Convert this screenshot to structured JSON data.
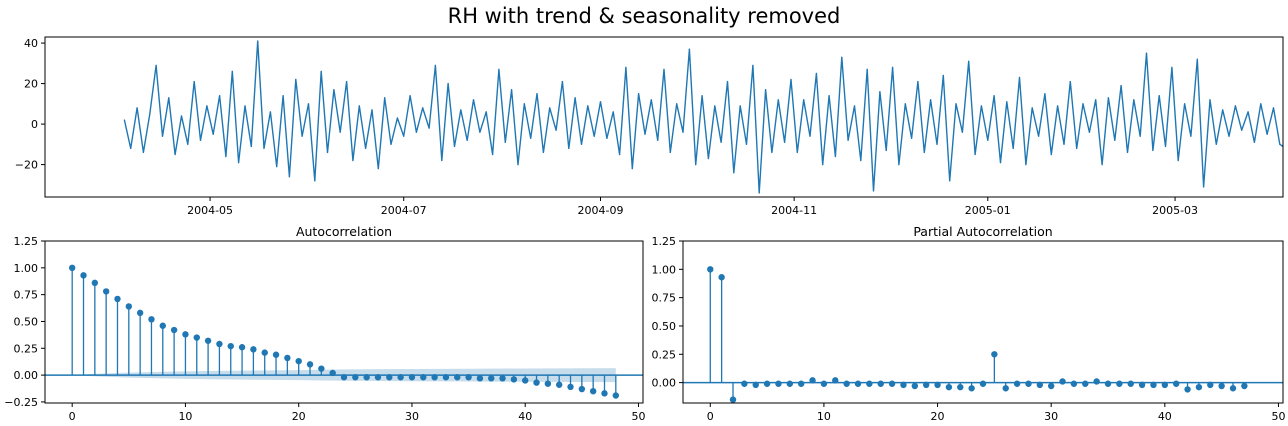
{
  "figure": {
    "title": "RH with trend & seasonality removed"
  },
  "chart_data": [
    {
      "type": "line",
      "title": "",
      "xlabel": "",
      "ylabel": "",
      "x_range": [
        "2004-03-10",
        "2005-04-04"
      ],
      "ylim": [
        -36,
        43
      ],
      "x_ticks": [
        "2004-05",
        "2004-07",
        "2004-09",
        "2004-11",
        "2005-01",
        "2005-03"
      ],
      "y_ticks": [
        -20,
        0,
        20,
        40
      ],
      "series": [
        {
          "color": "#1f77b4",
          "points": [
            [
              "2004-04-04",
              2
            ],
            [
              "2004-04-06",
              -12
            ],
            [
              "2004-04-08",
              8
            ],
            [
              "2004-04-10",
              -14
            ],
            [
              "2004-04-12",
              5
            ],
            [
              "2004-04-14",
              29
            ],
            [
              "2004-04-16",
              -6
            ],
            [
              "2004-04-18",
              13
            ],
            [
              "2004-04-20",
              -15
            ],
            [
              "2004-04-22",
              4
            ],
            [
              "2004-04-24",
              -10
            ],
            [
              "2004-04-26",
              21
            ],
            [
              "2004-04-28",
              -8
            ],
            [
              "2004-04-30",
              9
            ],
            [
              "2004-05-02",
              -5
            ],
            [
              "2004-05-04",
              14
            ],
            [
              "2004-05-06",
              -16
            ],
            [
              "2004-05-08",
              26
            ],
            [
              "2004-05-10",
              -19
            ],
            [
              "2004-05-12",
              9
            ],
            [
              "2004-05-14",
              -11
            ],
            [
              "2004-05-16",
              41
            ],
            [
              "2004-05-18",
              -12
            ],
            [
              "2004-05-20",
              6
            ],
            [
              "2004-05-22",
              -21
            ],
            [
              "2004-05-24",
              14
            ],
            [
              "2004-05-26",
              -26
            ],
            [
              "2004-05-28",
              22
            ],
            [
              "2004-05-30",
              -6
            ],
            [
              "2004-06-01",
              10
            ],
            [
              "2004-06-03",
              -28
            ],
            [
              "2004-06-05",
              26
            ],
            [
              "2004-06-07",
              -14
            ],
            [
              "2004-06-09",
              17
            ],
            [
              "2004-06-11",
              -4
            ],
            [
              "2004-06-13",
              21
            ],
            [
              "2004-06-15",
              -18
            ],
            [
              "2004-06-17",
              9
            ],
            [
              "2004-06-19",
              -12
            ],
            [
              "2004-06-21",
              7
            ],
            [
              "2004-06-23",
              -22
            ],
            [
              "2004-06-25",
              13
            ],
            [
              "2004-06-27",
              -10
            ],
            [
              "2004-06-29",
              3
            ],
            [
              "2004-07-01",
              -6
            ],
            [
              "2004-07-03",
              14
            ],
            [
              "2004-07-05",
              -4
            ],
            [
              "2004-07-07",
              8
            ],
            [
              "2004-07-09",
              -2
            ],
            [
              "2004-07-11",
              29
            ],
            [
              "2004-07-13",
              -18
            ],
            [
              "2004-07-15",
              20
            ],
            [
              "2004-07-17",
              -11
            ],
            [
              "2004-07-19",
              7
            ],
            [
              "2004-07-21",
              -8
            ],
            [
              "2004-07-23",
              12
            ],
            [
              "2004-07-25",
              -4
            ],
            [
              "2004-07-27",
              6
            ],
            [
              "2004-07-29",
              -15
            ],
            [
              "2004-07-31",
              27
            ],
            [
              "2004-08-02",
              -9
            ],
            [
              "2004-08-04",
              17
            ],
            [
              "2004-08-06",
              -20
            ],
            [
              "2004-08-08",
              10
            ],
            [
              "2004-08-10",
              -7
            ],
            [
              "2004-08-12",
              15
            ],
            [
              "2004-08-14",
              -14
            ],
            [
              "2004-08-16",
              8
            ],
            [
              "2004-08-18",
              -3
            ],
            [
              "2004-08-20",
              21
            ],
            [
              "2004-08-22",
              -12
            ],
            [
              "2004-08-24",
              13
            ],
            [
              "2004-08-26",
              -10
            ],
            [
              "2004-08-28",
              9
            ],
            [
              "2004-08-30",
              -6
            ],
            [
              "2004-09-01",
              11
            ],
            [
              "2004-09-03",
              -7
            ],
            [
              "2004-09-05",
              6
            ],
            [
              "2004-09-07",
              -15
            ],
            [
              "2004-09-09",
              28
            ],
            [
              "2004-09-11",
              -22
            ],
            [
              "2004-09-13",
              15
            ],
            [
              "2004-09-15",
              -5
            ],
            [
              "2004-09-17",
              12
            ],
            [
              "2004-09-19",
              -8
            ],
            [
              "2004-09-21",
              27
            ],
            [
              "2004-09-23",
              -14
            ],
            [
              "2004-09-25",
              10
            ],
            [
              "2004-09-27",
              -4
            ],
            [
              "2004-09-29",
              37
            ],
            [
              "2004-10-01",
              -20
            ],
            [
              "2004-10-03",
              14
            ],
            [
              "2004-10-05",
              -17
            ],
            [
              "2004-10-07",
              9
            ],
            [
              "2004-10-09",
              -9
            ],
            [
              "2004-10-11",
              21
            ],
            [
              "2004-10-13",
              -24
            ],
            [
              "2004-10-15",
              9
            ],
            [
              "2004-10-17",
              -10
            ],
            [
              "2004-10-19",
              29
            ],
            [
              "2004-10-21",
              -34
            ],
            [
              "2004-10-23",
              17
            ],
            [
              "2004-10-25",
              -14
            ],
            [
              "2004-10-27",
              12
            ],
            [
              "2004-10-29",
              -9
            ],
            [
              "2004-10-31",
              22
            ],
            [
              "2004-11-02",
              -14
            ],
            [
              "2004-11-04",
              12
            ],
            [
              "2004-11-06",
              -6
            ],
            [
              "2004-11-08",
              25
            ],
            [
              "2004-11-10",
              -20
            ],
            [
              "2004-11-12",
              14
            ],
            [
              "2004-11-14",
              -16
            ],
            [
              "2004-11-16",
              33
            ],
            [
              "2004-11-18",
              -8
            ],
            [
              "2004-11-20",
              9
            ],
            [
              "2004-11-22",
              -18
            ],
            [
              "2004-11-24",
              27
            ],
            [
              "2004-11-26",
              -33
            ],
            [
              "2004-11-28",
              16
            ],
            [
              "2004-11-30",
              -13
            ],
            [
              "2004-12-02",
              28
            ],
            [
              "2004-12-04",
              -20
            ],
            [
              "2004-12-06",
              10
            ],
            [
              "2004-12-08",
              -7
            ],
            [
              "2004-12-10",
              21
            ],
            [
              "2004-12-12",
              -14
            ],
            [
              "2004-12-14",
              12
            ],
            [
              "2004-12-16",
              -10
            ],
            [
              "2004-12-18",
              24
            ],
            [
              "2004-12-20",
              -28
            ],
            [
              "2004-12-22",
              10
            ],
            [
              "2004-12-24",
              -4
            ],
            [
              "2004-12-26",
              31
            ],
            [
              "2004-12-28",
              -15
            ],
            [
              "2004-12-30",
              9
            ],
            [
              "2005-01-01",
              -8
            ],
            [
              "2005-01-03",
              14
            ],
            [
              "2005-01-05",
              -19
            ],
            [
              "2005-01-07",
              11
            ],
            [
              "2005-01-09",
              -12
            ],
            [
              "2005-01-11",
              23
            ],
            [
              "2005-01-13",
              -20
            ],
            [
              "2005-01-15",
              8
            ],
            [
              "2005-01-17",
              -6
            ],
            [
              "2005-01-19",
              15
            ],
            [
              "2005-01-21",
              -15
            ],
            [
              "2005-01-23",
              9
            ],
            [
              "2005-01-25",
              -10
            ],
            [
              "2005-01-27",
              21
            ],
            [
              "2005-01-29",
              -12
            ],
            [
              "2005-01-31",
              10
            ],
            [
              "2005-02-02",
              -4
            ],
            [
              "2005-02-04",
              12
            ],
            [
              "2005-02-06",
              -20
            ],
            [
              "2005-02-08",
              13
            ],
            [
              "2005-02-10",
              -8
            ],
            [
              "2005-02-12",
              19
            ],
            [
              "2005-02-14",
              -14
            ],
            [
              "2005-02-16",
              12
            ],
            [
              "2005-02-18",
              -6
            ],
            [
              "2005-02-20",
              35
            ],
            [
              "2005-02-22",
              -13
            ],
            [
              "2005-02-24",
              14
            ],
            [
              "2005-02-26",
              -11
            ],
            [
              "2005-02-28",
              28
            ],
            [
              "2005-03-02",
              -18
            ],
            [
              "2005-03-04",
              10
            ],
            [
              "2005-03-06",
              -6
            ],
            [
              "2005-03-08",
              32
            ],
            [
              "2005-03-10",
              -31
            ],
            [
              "2005-03-12",
              12
            ],
            [
              "2005-03-14",
              -10
            ],
            [
              "2005-03-16",
              7
            ],
            [
              "2005-03-18",
              -6
            ],
            [
              "2005-03-20",
              9
            ],
            [
              "2005-03-22",
              -3
            ],
            [
              "2005-03-24",
              6
            ],
            [
              "2005-03-26",
              -9
            ],
            [
              "2005-03-28",
              10
            ],
            [
              "2005-03-30",
              -5
            ],
            [
              "2005-04-01",
              8
            ],
            [
              "2005-04-03",
              -10
            ],
            [
              "2005-04-04",
              -11
            ]
          ]
        }
      ]
    },
    {
      "type": "scatter",
      "title": "Autocorrelation",
      "xlabel": "",
      "ylabel": "",
      "xlim": [
        -2.4,
        50.4
      ],
      "ylim": [
        -0.26,
        1.25
      ],
      "x_ticks": [
        0,
        10,
        20,
        30,
        40,
        50
      ],
      "y_ticks": [
        -0.25,
        0.0,
        0.25,
        0.5,
        0.75,
        1.0,
        1.25
      ],
      "y_tick_labels": [
        "−0.25",
        "0.00",
        "0.25",
        "0.50",
        "0.75",
        "1.00",
        "1.25"
      ],
      "color": "#1f77b4",
      "lags": [
        0,
        1,
        2,
        3,
        4,
        5,
        6,
        7,
        8,
        9,
        10,
        11,
        12,
        13,
        14,
        15,
        16,
        17,
        18,
        19,
        20,
        21,
        22,
        23,
        24,
        25,
        26,
        27,
        28,
        29,
        30,
        31,
        32,
        33,
        34,
        35,
        36,
        37,
        38,
        39,
        40,
        41,
        42,
        43,
        44,
        45,
        46,
        47,
        48
      ],
      "values": [
        1.0,
        0.93,
        0.86,
        0.78,
        0.71,
        0.64,
        0.58,
        0.52,
        0.46,
        0.42,
        0.38,
        0.35,
        0.32,
        0.29,
        0.27,
        0.26,
        0.24,
        0.21,
        0.19,
        0.16,
        0.13,
        0.1,
        0.06,
        0.02,
        -0.02,
        -0.02,
        -0.02,
        -0.02,
        -0.02,
        -0.02,
        -0.02,
        -0.02,
        -0.02,
        -0.02,
        -0.02,
        -0.02,
        -0.03,
        -0.03,
        -0.03,
        -0.04,
        -0.05,
        -0.07,
        -0.08,
        -0.09,
        -0.11,
        -0.13,
        -0.15,
        -0.17,
        -0.19
      ],
      "confidence_band": {
        "lags": [
          0,
          1,
          2,
          3,
          5,
          8,
          12,
          16,
          20,
          22,
          24,
          30,
          35,
          40,
          45,
          48
        ],
        "halfwidth": [
          0.0,
          0.006,
          0.011,
          0.016,
          0.023,
          0.031,
          0.038,
          0.043,
          0.047,
          0.05,
          0.053,
          0.057,
          0.06,
          0.062,
          0.064,
          0.065
        ]
      }
    },
    {
      "type": "scatter",
      "title": "Partial Autocorrelation",
      "xlabel": "",
      "ylabel": "",
      "xlim": [
        -2.4,
        50.4
      ],
      "ylim": [
        -0.18,
        1.25
      ],
      "x_ticks": [
        0,
        10,
        20,
        30,
        40,
        50
      ],
      "y_ticks": [
        0.0,
        0.25,
        0.5,
        0.75,
        1.0,
        1.25
      ],
      "y_tick_labels": [
        "0.00",
        "0.25",
        "0.50",
        "0.75",
        "1.00",
        "1.25"
      ],
      "color": "#1f77b4",
      "lags": [
        0,
        1,
        2,
        3,
        4,
        5,
        6,
        7,
        8,
        9,
        10,
        11,
        12,
        13,
        14,
        15,
        16,
        17,
        18,
        19,
        20,
        21,
        22,
        23,
        24,
        25,
        26,
        27,
        28,
        29,
        30,
        31,
        32,
        33,
        34,
        35,
        36,
        37,
        38,
        39,
        40,
        41,
        42,
        43,
        44,
        45,
        46,
        47
      ],
      "values": [
        1.0,
        0.93,
        -0.15,
        -0.01,
        -0.02,
        -0.01,
        -0.01,
        -0.01,
        -0.01,
        0.02,
        -0.01,
        0.02,
        -0.01,
        -0.01,
        -0.01,
        -0.01,
        -0.01,
        -0.02,
        -0.03,
        -0.02,
        -0.02,
        -0.04,
        -0.04,
        -0.05,
        -0.01,
        0.25,
        -0.05,
        -0.01,
        -0.01,
        -0.02,
        -0.03,
        0.01,
        -0.01,
        -0.01,
        0.01,
        -0.01,
        -0.01,
        -0.01,
        -0.02,
        -0.02,
        -0.02,
        -0.01,
        -0.06,
        -0.04,
        -0.02,
        -0.03,
        -0.05,
        -0.03
      ]
    }
  ]
}
